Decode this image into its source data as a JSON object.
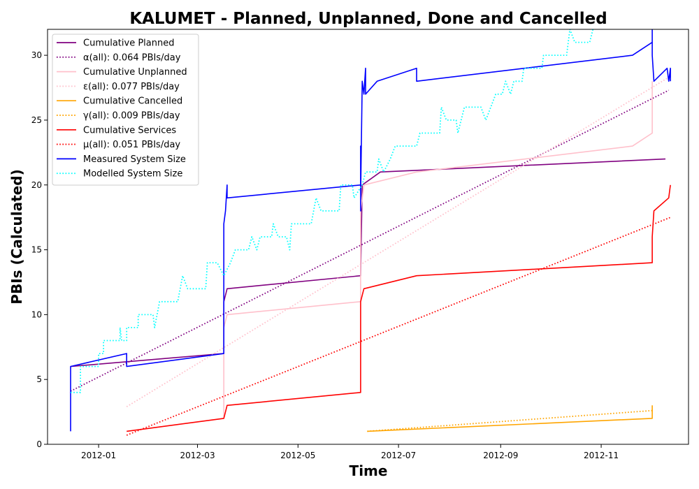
{
  "chart_data": {
    "type": "line",
    "title": "KALUMET - Planned, Unplanned, Done  and Cancelled",
    "xlabel": "Time",
    "ylabel": "PBIs (Calculated)",
    "x_ticks": [
      "2012-01",
      "2012-03",
      "2012-05",
      "2012-07",
      "2012-09",
      "2012-11"
    ],
    "x_tick_dates": [
      "2012-01-01",
      "2012-03-01",
      "2012-05-01",
      "2012-07-01",
      "2012-09-01",
      "2012-11-01"
    ],
    "xlim": [
      "2011-12-01",
      "2012-12-24"
    ],
    "ylim": [
      0,
      32
    ],
    "y_ticks": [
      0,
      5,
      10,
      15,
      20,
      25,
      30
    ],
    "legend_position": "top-left",
    "grid": false,
    "series": [
      {
        "name": "Cumulative Planned",
        "color": "#800080",
        "style": "solid",
        "points": [
          [
            "2011-12-15",
            6
          ],
          [
            "2012-03-17",
            7
          ],
          [
            "2012-03-17",
            11
          ],
          [
            "2012-03-19",
            12
          ],
          [
            "2012-06-08",
            13
          ],
          [
            "2012-06-09",
            20
          ],
          [
            "2012-06-20",
            21
          ],
          [
            "2012-12-10",
            22
          ]
        ]
      },
      {
        "name": "α(all): 0.064 PBIs/day",
        "color": "#800080",
        "style": "dotted",
        "points": [
          [
            "2011-12-15",
            4.1
          ],
          [
            "2012-12-12",
            27.3
          ]
        ]
      },
      {
        "name": "Cumulative Unplanned",
        "color": "#ffc0cb",
        "style": "solid",
        "points": [
          [
            "2012-03-17",
            2
          ],
          [
            "2012-03-17",
            9
          ],
          [
            "2012-03-19",
            10
          ],
          [
            "2012-06-08",
            11
          ],
          [
            "2012-06-08",
            18
          ],
          [
            "2012-06-10",
            20
          ],
          [
            "2012-07-12",
            21
          ],
          [
            "2012-11-20",
            23
          ],
          [
            "2012-12-02",
            24
          ],
          [
            "2012-12-02",
            28
          ]
        ]
      },
      {
        "name": "ε(all): 0.077 PBIs/day",
        "color": "#ffc0cb",
        "style": "dotted",
        "points": [
          [
            "2012-01-18",
            2.9
          ],
          [
            "2012-12-12",
            28.3
          ]
        ]
      },
      {
        "name": "Cumulative Cancelled",
        "color": "#ffa500",
        "style": "solid",
        "points": [
          [
            "2012-06-12",
            1
          ],
          [
            "2012-12-02",
            2
          ],
          [
            "2012-12-02",
            3
          ]
        ]
      },
      {
        "name": "γ(all): 0.009 PBIs/day",
        "color": "#ffa500",
        "style": "dotted",
        "points": [
          [
            "2012-06-12",
            1.0
          ],
          [
            "2012-12-02",
            2.6
          ]
        ]
      },
      {
        "name": "Cumulative Services",
        "color": "#ff0000",
        "style": "solid",
        "points": [
          [
            "2012-01-18",
            1
          ],
          [
            "2012-03-17",
            2
          ],
          [
            "2012-03-19",
            3
          ],
          [
            "2012-06-08",
            4
          ],
          [
            "2012-06-08",
            11
          ],
          [
            "2012-06-10",
            12
          ],
          [
            "2012-07-12",
            13
          ],
          [
            "2012-12-02",
            14
          ],
          [
            "2012-12-02",
            16
          ],
          [
            "2012-12-03",
            18
          ],
          [
            "2012-12-12",
            19
          ],
          [
            "2012-12-13",
            20
          ]
        ]
      },
      {
        "name": "μ(all): 0.051 PBIs/day",
        "color": "#ff0000",
        "style": "dotted",
        "points": [
          [
            "2012-01-18",
            0.7
          ],
          [
            "2012-12-13",
            17.5
          ]
        ]
      },
      {
        "name": "Measured System Size",
        "color": "#0000ff",
        "style": "solid",
        "points": [
          [
            "2011-12-15",
            1
          ],
          [
            "2011-12-15",
            6
          ],
          [
            "2012-01-18",
            7
          ],
          [
            "2012-01-18",
            6
          ],
          [
            "2012-03-17",
            7
          ],
          [
            "2012-03-17",
            17
          ],
          [
            "2012-03-18",
            18
          ],
          [
            "2012-03-19",
            20
          ],
          [
            "2012-03-19",
            19
          ],
          [
            "2012-06-08",
            20
          ],
          [
            "2012-06-08",
            18
          ],
          [
            "2012-06-08",
            23
          ],
          [
            "2012-06-08",
            19
          ],
          [
            "2012-06-09",
            28
          ],
          [
            "2012-06-10",
            27
          ],
          [
            "2012-06-11",
            29
          ],
          [
            "2012-06-11",
            27
          ],
          [
            "2012-06-18",
            28
          ],
          [
            "2012-07-12",
            29
          ],
          [
            "2012-07-12",
            28
          ],
          [
            "2012-11-20",
            30
          ],
          [
            "2012-12-02",
            31
          ],
          [
            "2012-12-02",
            33
          ],
          [
            "2012-12-02",
            30
          ],
          [
            "2012-12-03",
            28
          ],
          [
            "2012-12-11",
            29
          ],
          [
            "2012-12-12",
            28
          ],
          [
            "2012-12-13",
            29
          ],
          [
            "2012-12-13",
            28
          ]
        ]
      },
      {
        "name": "Modelled System Size",
        "color": "#00ffff",
        "style": "dotted",
        "points": [
          [
            "2011-12-15",
            4
          ],
          [
            "2011-12-21",
            4
          ],
          [
            "2011-12-21",
            6
          ],
          [
            "2012-01-01",
            6
          ],
          [
            "2012-01-01",
            7
          ],
          [
            "2012-01-04",
            7
          ],
          [
            "2012-01-04",
            8
          ],
          [
            "2012-01-14",
            8
          ],
          [
            "2012-01-14",
            9
          ],
          [
            "2012-01-15",
            8
          ],
          [
            "2012-01-18",
            8
          ],
          [
            "2012-01-18",
            9
          ],
          [
            "2012-01-25",
            9
          ],
          [
            "2012-01-25",
            10
          ],
          [
            "2012-02-03",
            10
          ],
          [
            "2012-02-04",
            9
          ],
          [
            "2012-02-07",
            11
          ],
          [
            "2012-02-18",
            11
          ],
          [
            "2012-02-21",
            13
          ],
          [
            "2012-02-24",
            12
          ],
          [
            "2012-03-06",
            12
          ],
          [
            "2012-03-07",
            14
          ],
          [
            "2012-03-13",
            14
          ],
          [
            "2012-03-17",
            13
          ],
          [
            "2012-03-21",
            14
          ],
          [
            "2012-03-24",
            15
          ],
          [
            "2012-04-01",
            15
          ],
          [
            "2012-04-03",
            16
          ],
          [
            "2012-04-06",
            15
          ],
          [
            "2012-04-08",
            16
          ],
          [
            "2012-04-15",
            16
          ],
          [
            "2012-04-16",
            17
          ],
          [
            "2012-04-19",
            16
          ],
          [
            "2012-04-24",
            16
          ],
          [
            "2012-04-26",
            15
          ],
          [
            "2012-04-27",
            17
          ],
          [
            "2012-05-09",
            17
          ],
          [
            "2012-05-12",
            19
          ],
          [
            "2012-05-15",
            18
          ],
          [
            "2012-05-26",
            18
          ],
          [
            "2012-05-27",
            20
          ],
          [
            "2012-06-03",
            20
          ],
          [
            "2012-06-04",
            19
          ],
          [
            "2012-06-09",
            20
          ],
          [
            "2012-06-11",
            21
          ],
          [
            "2012-06-18",
            21
          ],
          [
            "2012-06-19",
            22
          ],
          [
            "2012-06-22",
            21
          ],
          [
            "2012-06-26",
            22
          ],
          [
            "2012-06-29",
            23
          ],
          [
            "2012-07-12",
            23
          ],
          [
            "2012-07-14",
            24
          ],
          [
            "2012-07-26",
            24
          ],
          [
            "2012-07-27",
            26
          ],
          [
            "2012-07-30",
            25
          ],
          [
            "2012-08-05",
            25
          ],
          [
            "2012-08-06",
            24
          ],
          [
            "2012-08-10",
            26
          ],
          [
            "2012-08-20",
            26
          ],
          [
            "2012-08-23",
            25
          ],
          [
            "2012-08-26",
            26
          ],
          [
            "2012-08-29",
            27
          ],
          [
            "2012-09-02",
            27
          ],
          [
            "2012-09-04",
            28
          ],
          [
            "2012-09-07",
            27
          ],
          [
            "2012-09-09",
            28
          ],
          [
            "2012-09-14",
            28
          ],
          [
            "2012-09-15",
            29
          ],
          [
            "2012-09-26",
            29
          ],
          [
            "2012-09-27",
            30
          ],
          [
            "2012-10-11",
            30
          ],
          [
            "2012-10-13",
            32
          ],
          [
            "2012-10-16",
            31
          ],
          [
            "2012-10-25",
            31
          ],
          [
            "2012-10-27",
            32
          ]
        ]
      }
    ]
  }
}
